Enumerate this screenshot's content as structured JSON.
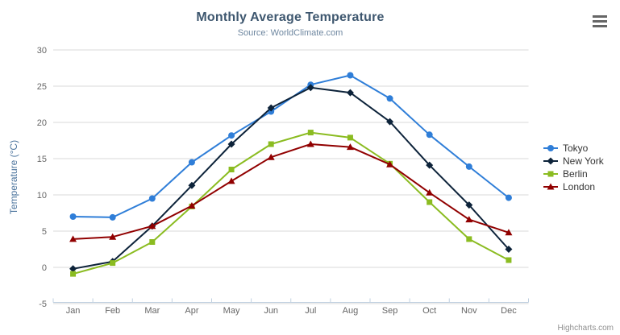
{
  "chart_data": {
    "type": "line",
    "title": "Monthly Average Temperature",
    "subtitle": "Source: WorldClimate.com",
    "categories": [
      "Jan",
      "Feb",
      "Mar",
      "Apr",
      "May",
      "Jun",
      "Jul",
      "Aug",
      "Sep",
      "Oct",
      "Nov",
      "Dec"
    ],
    "series": [
      {
        "name": "Tokyo",
        "color": "#2F7ED8",
        "marker": "circle",
        "values": [
          7.0,
          6.9,
          9.5,
          14.5,
          18.2,
          21.5,
          25.2,
          26.5,
          23.3,
          18.3,
          13.9,
          9.6
        ]
      },
      {
        "name": "New York",
        "color": "#0D233A",
        "marker": "diamond",
        "values": [
          -0.2,
          0.8,
          5.7,
          11.3,
          17.0,
          22.0,
          24.8,
          24.1,
          20.1,
          14.1,
          8.6,
          2.5
        ]
      },
      {
        "name": "Berlin",
        "color": "#8BBC21",
        "marker": "square",
        "values": [
          -0.9,
          0.6,
          3.5,
          8.4,
          13.5,
          17.0,
          18.6,
          17.9,
          14.3,
          9.0,
          3.9,
          1.0
        ]
      },
      {
        "name": "London",
        "color": "#910000",
        "marker": "triangle",
        "values": [
          3.9,
          4.2,
          5.7,
          8.5,
          11.9,
          15.2,
          17.0,
          16.6,
          14.2,
          10.3,
          6.6,
          4.8
        ]
      }
    ],
    "xlabel": "",
    "ylabel": "Temperature (°C)",
    "ylim": [
      -5,
      30
    ],
    "ytick_interval": 5,
    "yticks": [
      30,
      25,
      20,
      15,
      10,
      5,
      0,
      -5
    ],
    "grid": true,
    "legend_position": "right"
  },
  "styles": {
    "grid_color": "#D8D8D8",
    "axis_line_color": "#C0D0E0",
    "axis_label_color": "#666666",
    "line_width": 2,
    "marker_radius": 4.5
  },
  "credits": {
    "label": "Highcharts.com"
  }
}
